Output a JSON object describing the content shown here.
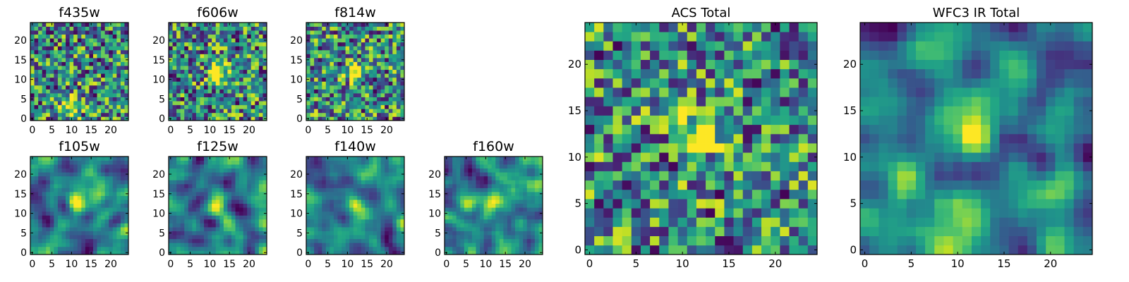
{
  "chart_data": [
    {
      "type": "heatmap",
      "title": "f435w",
      "grid_size": 25,
      "xticks": [
        0,
        5,
        10,
        15,
        20
      ],
      "yticks": [
        0,
        5,
        10,
        15,
        20
      ],
      "xlim": [
        -0.5,
        24.5
      ],
      "ylim": [
        -0.5,
        24.5
      ],
      "colormap": "viridis",
      "peak_center": [
        10,
        3.5
      ],
      "style": "noise"
    },
    {
      "type": "heatmap",
      "title": "f606w",
      "grid_size": 25,
      "xticks": [
        0,
        5,
        10,
        15,
        20
      ],
      "yticks": [
        0,
        5,
        10,
        15,
        20
      ],
      "xlim": [
        -0.5,
        24.5
      ],
      "ylim": [
        -0.5,
        24.5
      ],
      "colormap": "viridis",
      "peak_center": [
        12,
        12
      ],
      "style": "noise"
    },
    {
      "type": "heatmap",
      "title": "f814w",
      "grid_size": 25,
      "xticks": [
        0,
        5,
        10,
        15,
        20
      ],
      "yticks": [
        0,
        5,
        10,
        15,
        20
      ],
      "xlim": [
        -0.5,
        24.5
      ],
      "ylim": [
        -0.5,
        24.5
      ],
      "colormap": "viridis",
      "peak_center": [
        12,
        12
      ],
      "style": "noise"
    },
    {
      "type": "heatmap",
      "title": "f105w",
      "grid_size": 25,
      "xticks": [
        0,
        5,
        10,
        15,
        20
      ],
      "yticks": [
        0,
        5,
        10,
        15,
        20
      ],
      "xlim": [
        -0.5,
        24.5
      ],
      "ylim": [
        -0.5,
        24.5
      ],
      "colormap": "viridis",
      "peak_center": [
        11.5,
        12.5
      ],
      "style": "smooth"
    },
    {
      "type": "heatmap",
      "title": "f125w",
      "grid_size": 25,
      "xticks": [
        0,
        5,
        10,
        15,
        20
      ],
      "yticks": [
        0,
        5,
        10,
        15,
        20
      ],
      "xlim": [
        -0.5,
        24.5
      ],
      "ylim": [
        -0.5,
        24.5
      ],
      "colormap": "viridis",
      "peak_center": [
        11.5,
        12
      ],
      "style": "smooth"
    },
    {
      "type": "heatmap",
      "title": "f140w",
      "grid_size": 25,
      "xticks": [
        0,
        5,
        10,
        15,
        20
      ],
      "yticks": [
        0,
        5,
        10,
        15,
        20
      ],
      "xlim": [
        -0.5,
        24.5
      ],
      "ylim": [
        -0.5,
        24.5
      ],
      "colormap": "viridis",
      "peak_center": [
        12,
        12
      ],
      "style": "smooth"
    },
    {
      "type": "heatmap",
      "title": "f160w",
      "grid_size": 25,
      "xticks": [
        0,
        5,
        10,
        15,
        20
      ],
      "yticks": [
        0,
        5,
        10,
        15,
        20
      ],
      "xlim": [
        -0.5,
        24.5
      ],
      "ylim": [
        -0.5,
        24.5
      ],
      "colormap": "viridis",
      "peak_center": [
        11.5,
        13
      ],
      "style": "smooth"
    },
    {
      "type": "heatmap",
      "title": "ACS Total",
      "grid_size": 25,
      "xticks": [
        0,
        5,
        10,
        15,
        20
      ],
      "yticks": [
        0,
        5,
        10,
        15,
        20
      ],
      "xlim": [
        -0.5,
        24.5
      ],
      "ylim": [
        -0.5,
        24.5
      ],
      "colormap": "viridis",
      "peak_center": [
        12,
        12.5
      ],
      "style": "noise"
    },
    {
      "type": "heatmap",
      "title": "WFC3 IR Total",
      "grid_size": 25,
      "xticks": [
        0,
        5,
        10,
        15,
        20
      ],
      "yticks": [
        0,
        5,
        10,
        15,
        20
      ],
      "xlim": [
        -0.5,
        24.5
      ],
      "ylim": [
        -0.5,
        24.5
      ],
      "colormap": "viridis",
      "peak_center": [
        12,
        13
      ],
      "style": "smooth"
    }
  ]
}
